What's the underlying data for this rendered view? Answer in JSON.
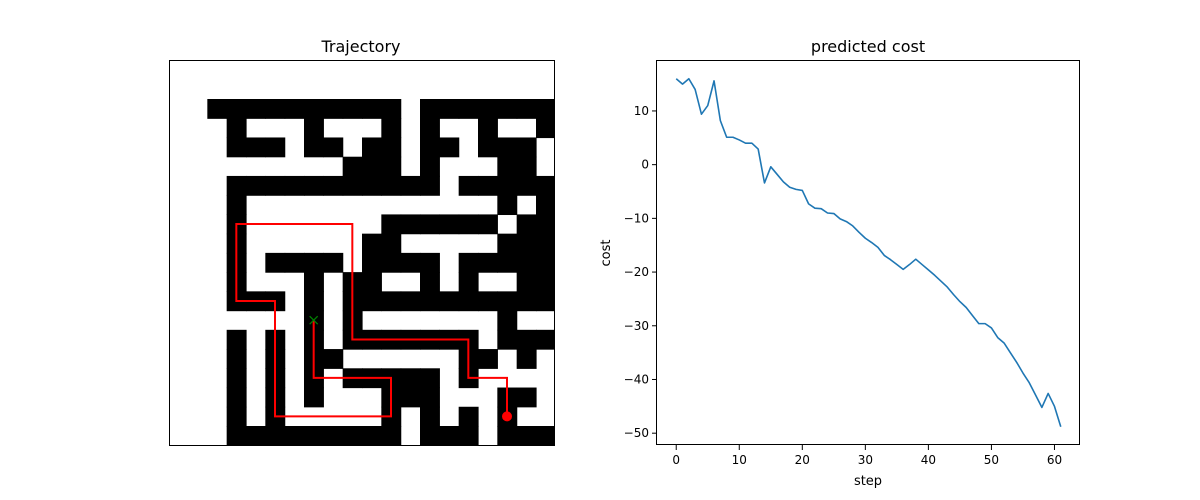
{
  "chart_data": [
    {
      "type": "maze",
      "title": "Trajectory",
      "grid_size": [
        20,
        20
      ],
      "walls": [
        [
          1,
          0
        ],
        [
          2,
          0
        ],
        [
          3,
          0
        ],
        [
          4,
          0
        ],
        [
          5,
          0
        ],
        [
          6,
          0
        ],
        [
          7,
          0
        ],
        [
          8,
          0
        ],
        [
          9,
          0
        ],
        [
          10,
          0
        ],
        [
          12,
          0
        ],
        [
          13,
          0
        ],
        [
          14,
          0
        ],
        [
          15,
          0
        ],
        [
          16,
          0
        ],
        [
          17,
          0
        ],
        [
          18,
          0
        ],
        [
          19,
          0
        ],
        [
          2,
          1
        ],
        [
          6,
          1
        ],
        [
          10,
          1
        ],
        [
          12,
          1
        ],
        [
          15,
          1
        ],
        [
          18,
          1
        ],
        [
          19,
          1
        ],
        [
          2,
          2
        ],
        [
          3,
          2
        ],
        [
          4,
          2
        ],
        [
          6,
          2
        ],
        [
          7,
          2
        ],
        [
          9,
          2
        ],
        [
          10,
          2
        ],
        [
          12,
          2
        ],
        [
          13,
          2
        ],
        [
          15,
          2
        ],
        [
          16,
          2
        ],
        [
          17,
          2
        ],
        [
          19,
          2
        ],
        [
          8,
          3
        ],
        [
          9,
          3
        ],
        [
          10,
          3
        ],
        [
          12,
          3
        ],
        [
          16,
          3
        ],
        [
          17,
          3
        ],
        [
          2,
          4
        ],
        [
          3,
          4
        ],
        [
          4,
          4
        ],
        [
          5,
          4
        ],
        [
          6,
          4
        ],
        [
          7,
          4
        ],
        [
          8,
          4
        ],
        [
          9,
          4
        ],
        [
          10,
          4
        ],
        [
          11,
          4
        ],
        [
          12,
          4
        ],
        [
          14,
          4
        ],
        [
          15,
          4
        ],
        [
          16,
          4
        ],
        [
          17,
          4
        ],
        [
          18,
          4
        ],
        [
          19,
          4
        ],
        [
          2,
          5
        ],
        [
          16,
          5
        ],
        [
          18,
          5
        ],
        [
          19,
          5
        ],
        [
          2,
          6
        ],
        [
          10,
          6
        ],
        [
          11,
          6
        ],
        [
          12,
          6
        ],
        [
          13,
          6
        ],
        [
          14,
          6
        ],
        [
          15,
          6
        ],
        [
          17,
          6
        ],
        [
          18,
          6
        ],
        [
          2,
          7
        ],
        [
          9,
          7
        ],
        [
          10,
          7
        ],
        [
          16,
          7
        ],
        [
          17,
          7
        ],
        [
          18,
          7
        ],
        [
          2,
          8
        ],
        [
          4,
          8
        ],
        [
          5,
          8
        ],
        [
          6,
          8
        ],
        [
          7,
          8
        ],
        [
          9,
          8
        ],
        [
          10,
          8
        ],
        [
          11,
          8
        ],
        [
          12,
          8
        ],
        [
          14,
          8
        ],
        [
          15,
          8
        ],
        [
          16,
          8
        ],
        [
          17,
          8
        ],
        [
          18,
          8
        ],
        [
          2,
          9
        ],
        [
          6,
          9
        ],
        [
          8,
          9
        ],
        [
          9,
          9
        ],
        [
          12,
          9
        ],
        [
          14,
          9
        ],
        [
          17,
          9
        ],
        [
          18,
          9
        ],
        [
          2,
          10
        ],
        [
          3,
          10
        ],
        [
          4,
          10
        ],
        [
          6,
          10
        ],
        [
          8,
          10
        ],
        [
          9,
          10
        ],
        [
          10,
          10
        ],
        [
          11,
          10
        ],
        [
          12,
          10
        ],
        [
          13,
          10
        ],
        [
          14,
          10
        ],
        [
          15,
          10
        ],
        [
          16,
          10
        ],
        [
          17,
          10
        ],
        [
          18,
          10
        ],
        [
          6,
          11
        ],
        [
          8,
          11
        ],
        [
          16,
          11
        ],
        [
          2,
          12
        ],
        [
          4,
          12
        ],
        [
          6,
          12
        ],
        [
          8,
          12
        ],
        [
          9,
          12
        ],
        [
          10,
          12
        ],
        [
          11,
          12
        ],
        [
          12,
          12
        ],
        [
          13,
          12
        ],
        [
          14,
          12
        ],
        [
          16,
          12
        ],
        [
          17,
          12
        ],
        [
          18,
          12
        ],
        [
          19,
          12
        ],
        [
          2,
          13
        ],
        [
          4,
          13
        ],
        [
          6,
          13
        ],
        [
          7,
          13
        ],
        [
          14,
          13
        ],
        [
          15,
          13
        ],
        [
          17,
          13
        ],
        [
          19,
          13
        ],
        [
          2,
          14
        ],
        [
          4,
          14
        ],
        [
          6,
          14
        ],
        [
          8,
          14
        ],
        [
          9,
          14
        ],
        [
          10,
          14
        ],
        [
          11,
          14
        ],
        [
          12,
          14
        ],
        [
          14,
          14
        ],
        [
          19,
          14
        ],
        [
          2,
          15
        ],
        [
          4,
          15
        ],
        [
          6,
          15
        ],
        [
          10,
          15
        ],
        [
          11,
          15
        ],
        [
          12,
          15
        ],
        [
          16,
          15
        ],
        [
          17,
          15
        ],
        [
          19,
          15
        ],
        [
          2,
          16
        ],
        [
          4,
          16
        ],
        [
          10,
          16
        ],
        [
          12,
          16
        ],
        [
          14,
          16
        ],
        [
          16,
          16
        ],
        [
          2,
          17
        ],
        [
          3,
          17
        ],
        [
          4,
          17
        ],
        [
          5,
          17
        ],
        [
          6,
          17
        ],
        [
          7,
          17
        ],
        [
          8,
          17
        ],
        [
          9,
          17
        ],
        [
          10,
          17
        ],
        [
          12,
          17
        ],
        [
          13,
          17
        ],
        [
          14,
          17
        ],
        [
          16,
          17
        ],
        [
          17,
          17
        ],
        [
          18,
          17
        ],
        [
          19,
          17
        ],
        [
          20,
          17
        ]
      ],
      "path": [
        [
          16.5,
          16.5
        ],
        [
          16.5,
          14.5
        ],
        [
          14.5,
          14.5
        ],
        [
          14.5,
          12.5
        ],
        [
          8.5,
          12.5
        ],
        [
          8.5,
          6.5
        ],
        [
          2.5,
          6.5
        ],
        [
          2.5,
          10.5
        ],
        [
          4.5,
          10.5
        ],
        [
          4.5,
          16.5
        ],
        [
          10.5,
          16.5
        ],
        [
          10.5,
          14.5
        ],
        [
          6.5,
          14.5
        ],
        [
          6.5,
          11.5
        ]
      ],
      "start": [
        16.5,
        16.5
      ],
      "goal": [
        6.5,
        11.5
      ],
      "path_color": "#ff0000",
      "start_color": "#ff0000",
      "goal_color": "#008000",
      "axis_ticks": false
    },
    {
      "type": "line",
      "title": "predicted cost",
      "xlabel": "step",
      "ylabel": "cost",
      "xlim": [
        -3.05,
        64.05
      ],
      "ylim": [
        -52.2,
        19.3
      ],
      "xticks": [
        0,
        10,
        20,
        30,
        40,
        50,
        60
      ],
      "yticks": [
        -50,
        -40,
        -30,
        -20,
        -10,
        0,
        10
      ],
      "grid": false,
      "series": [
        {
          "color": "#1f77b4",
          "x": [
            0,
            1,
            2,
            3,
            4,
            5,
            6,
            7,
            8,
            9,
            10,
            11,
            12,
            13,
            14,
            15,
            16,
            17,
            18,
            19,
            20,
            21,
            22,
            23,
            24,
            25,
            26,
            27,
            28,
            29,
            30,
            31,
            32,
            33,
            34,
            35,
            36,
            37,
            38,
            39,
            40,
            41,
            42,
            43,
            44,
            45,
            46,
            47,
            48,
            49,
            50,
            51,
            52,
            53,
            54,
            55,
            56,
            57,
            58,
            59,
            60,
            61
          ],
          "values": [
            16.0,
            15.0,
            16.0,
            14.0,
            9.4,
            11.0,
            15.6,
            8.2,
            5.1,
            5.1,
            4.6,
            4.0,
            4.0,
            2.9,
            -3.4,
            -0.4,
            -1.8,
            -3.2,
            -4.2,
            -4.6,
            -4.8,
            -7.3,
            -8.1,
            -8.2,
            -9.0,
            -9.1,
            -10.1,
            -10.6,
            -11.4,
            -12.6,
            -13.7,
            -14.5,
            -15.4,
            -16.9,
            -17.7,
            -18.6,
            -19.5,
            -18.6,
            -17.6,
            -18.6,
            -19.6,
            -20.6,
            -21.7,
            -22.8,
            -24.2,
            -25.5,
            -26.6,
            -28.1,
            -29.6,
            -29.6,
            -30.4,
            -32.2,
            -33.2,
            -35.0,
            -36.8,
            -38.8,
            -40.6,
            -42.9,
            -45.2,
            -42.6,
            -45.0,
            -48.8
          ]
        }
      ]
    }
  ]
}
